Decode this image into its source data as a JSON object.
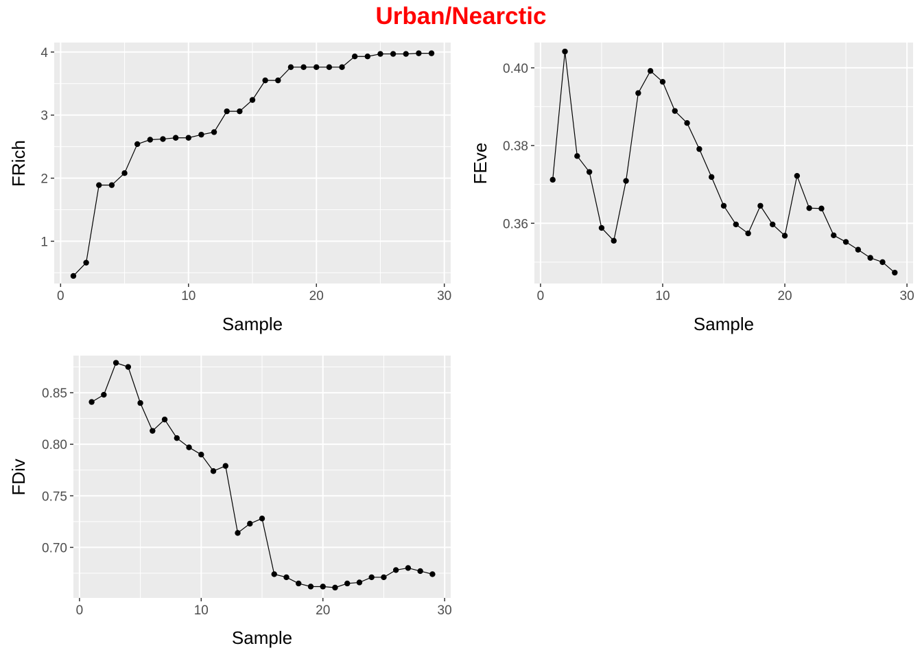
{
  "title": "Urban/Nearctic",
  "colors": {
    "title": "#ff0000",
    "panel_background": "#ebebeb",
    "grid": "#ffffff",
    "series": "#000000",
    "tick_text": "#4d4d4d"
  },
  "chart_data": [
    {
      "type": "line",
      "markers": "points",
      "grid": true,
      "xlabel": "Sample",
      "ylabel": "FRich",
      "xlim": [
        -0.5,
        30.5
      ],
      "ylim": [
        0.33,
        4.15
      ],
      "xticks": [
        0,
        10,
        20,
        30
      ],
      "yticks": [
        1,
        2,
        3,
        4
      ],
      "xtick_labels": [
        "0",
        "10",
        "20",
        "30"
      ],
      "ytick_labels": [
        "1",
        "2",
        "3",
        "4"
      ],
      "x": [
        1,
        2,
        3,
        4,
        5,
        6,
        7,
        8,
        9,
        10,
        11,
        12,
        13,
        14,
        15,
        16,
        17,
        18,
        19,
        20,
        21,
        22,
        23,
        24,
        25,
        26,
        27,
        28,
        29
      ],
      "y": [
        0.45,
        0.66,
        1.89,
        1.89,
        2.08,
        2.54,
        2.61,
        2.62,
        2.64,
        2.64,
        2.69,
        2.73,
        3.06,
        3.06,
        3.24,
        3.55,
        3.55,
        3.76,
        3.76,
        3.76,
        3.76,
        3.76,
        3.93,
        3.93,
        3.97,
        3.97,
        3.97,
        3.98,
        3.98
      ]
    },
    {
      "type": "line",
      "markers": "points",
      "grid": true,
      "xlabel": "Sample",
      "ylabel": "FEve",
      "xlim": [
        -0.5,
        30.5
      ],
      "ylim": [
        0.3445,
        0.4065
      ],
      "xticks": [
        0,
        10,
        20,
        30
      ],
      "yticks": [
        0.36,
        0.38,
        0.4
      ],
      "xtick_labels": [
        "0",
        "10",
        "20",
        "30"
      ],
      "ytick_labels": [
        "0.36",
        "0.38",
        "0.40"
      ],
      "x": [
        1,
        2,
        3,
        4,
        5,
        6,
        7,
        8,
        9,
        10,
        11,
        12,
        13,
        14,
        15,
        16,
        17,
        18,
        19,
        20,
        21,
        22,
        23,
        24,
        25,
        26,
        27,
        28,
        29
      ],
      "y": [
        0.3712,
        0.4042,
        0.3773,
        0.3732,
        0.3588,
        0.3555,
        0.3709,
        0.3935,
        0.3992,
        0.3964,
        0.3889,
        0.3858,
        0.3791,
        0.3719,
        0.3645,
        0.3597,
        0.3574,
        0.3645,
        0.3597,
        0.3568,
        0.3722,
        0.3639,
        0.3638,
        0.3569,
        0.3552,
        0.3532,
        0.3511,
        0.35,
        0.3473
      ]
    },
    {
      "type": "line",
      "markers": "points",
      "grid": true,
      "xlabel": "Sample",
      "ylabel": "FDiv",
      "xlim": [
        -0.5,
        30.5
      ],
      "ylim": [
        0.651,
        0.886
      ],
      "xticks": [
        0,
        10,
        20,
        30
      ],
      "yticks": [
        0.7,
        0.75,
        0.8,
        0.85
      ],
      "xtick_labels": [
        "0",
        "10",
        "20",
        "30"
      ],
      "ytick_labels": [
        "0.70",
        "0.75",
        "0.80",
        "0.85"
      ],
      "x": [
        1,
        2,
        3,
        4,
        5,
        6,
        7,
        8,
        9,
        10,
        11,
        12,
        13,
        14,
        15,
        16,
        17,
        18,
        19,
        20,
        21,
        22,
        23,
        24,
        25,
        26,
        27,
        28,
        29
      ],
      "y": [
        0.841,
        0.848,
        0.879,
        0.875,
        0.84,
        0.813,
        0.824,
        0.806,
        0.797,
        0.79,
        0.774,
        0.779,
        0.714,
        0.723,
        0.728,
        0.674,
        0.671,
        0.665,
        0.662,
        0.662,
        0.661,
        0.665,
        0.666,
        0.671,
        0.671,
        0.678,
        0.68,
        0.677,
        0.674
      ]
    }
  ]
}
